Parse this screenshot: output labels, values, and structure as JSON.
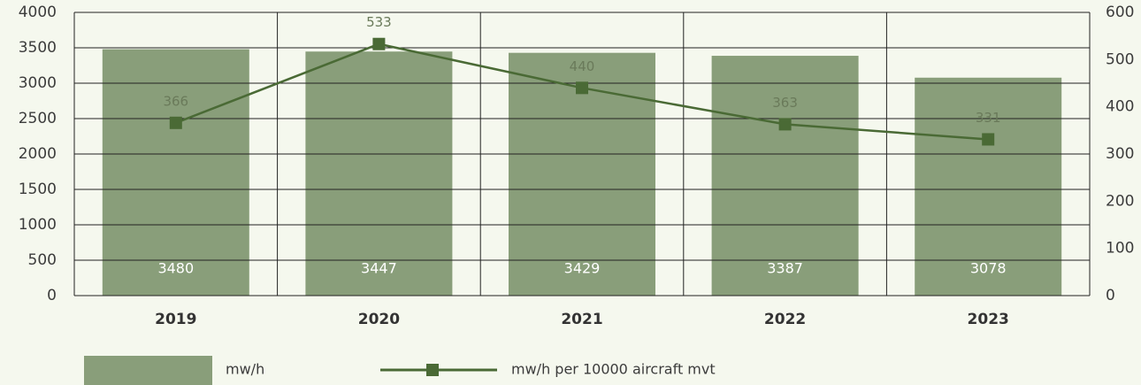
{
  "chart_data": {
    "type": "bar",
    "categories": [
      "2019",
      "2020",
      "2021",
      "2022",
      "2023"
    ],
    "series": [
      {
        "name": "mw/h",
        "type": "bar",
        "color": "#899e7a",
        "values": [
          3480,
          3447,
          3429,
          3387,
          3078
        ]
      },
      {
        "name": "mw/h per 10000 aircraft mvt",
        "type": "line",
        "axis": "y2",
        "color": "#4a6a35",
        "values": [
          366,
          533,
          440,
          363,
          331
        ]
      }
    ],
    "ylim": [
      0,
      4000
    ],
    "yticks": [
      0,
      500,
      1000,
      1500,
      2000,
      2500,
      3000,
      3500,
      4000
    ],
    "y2lim": [
      0,
      600
    ],
    "y2ticks": [
      0,
      100,
      200,
      300,
      400,
      500,
      600
    ],
    "grid": true,
    "legend": "bottom"
  }
}
